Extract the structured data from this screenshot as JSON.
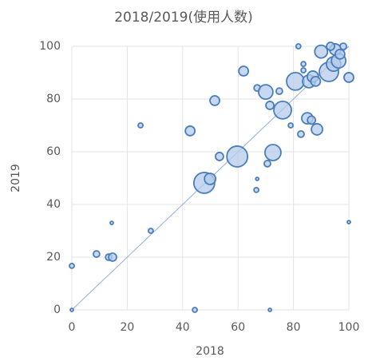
{
  "chart_data": {
    "type": "bubble",
    "title": "2018/2019(使用人数)",
    "x_label": "2018",
    "y_label": "2019",
    "x": [
      0,
      0,
      8.9,
      13.3,
      14.7,
      14.4,
      24.8,
      28.5,
      42.7,
      44.4,
      47.8,
      49.9,
      51.6,
      53.3,
      59.7,
      62,
      66.6,
      66.9,
      66.9,
      70,
      70.6,
      71.5,
      72.6,
      71.5,
      74.9,
      76.1,
      79,
      80.7,
      82.7,
      81.8,
      83.6,
      83.6,
      85,
      86.5,
      85.6,
      87,
      88,
      88.5,
      90,
      92.8,
      94.5,
      96.3,
      95.1,
      96.8,
      93.4,
      98,
      100,
      100
    ],
    "y": [
      16.7,
      0,
      21.2,
      20,
      20,
      33,
      70,
      30,
      67.9,
      0,
      48.2,
      49.7,
      79.4,
      58.2,
      58.2,
      90.6,
      45.5,
      49.7,
      84.2,
      82.7,
      55.5,
      77.6,
      59.7,
      0,
      83,
      75.8,
      70,
      86.7,
      66.7,
      100,
      93.3,
      90.9,
      72.7,
      72,
      86.7,
      88.5,
      86.7,
      68.5,
      98,
      90.3,
      93.3,
      94.5,
      98.8,
      97,
      100,
      100,
      88.2,
      33.3
    ],
    "sizes": [
      3,
      2,
      4,
      4,
      5,
      2,
      3,
      3,
      6,
      3,
      13,
      7,
      6,
      5,
      13,
      6,
      3,
      2,
      4,
      9,
      4,
      5,
      10,
      2,
      4,
      11,
      3,
      11,
      4,
      3,
      3,
      3,
      7,
      5,
      8,
      7,
      6,
      7,
      8,
      12,
      9,
      9,
      7,
      6,
      5,
      4,
      6,
      2
    ],
    "color": "#4a7ebb",
    "fill": "#b4cbeb",
    "xlim": [
      0,
      100
    ],
    "ylim": [
      0,
      100
    ],
    "xticks": [
      0,
      20,
      40,
      60,
      80,
      100
    ],
    "yticks": [
      0,
      20,
      40,
      60,
      80,
      100
    ],
    "grid": true,
    "diagonal": true
  }
}
